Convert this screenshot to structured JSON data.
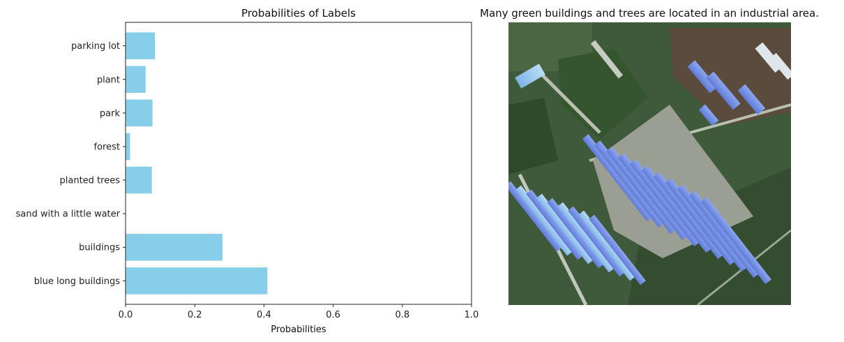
{
  "chart_data": [
    {
      "type": "bar",
      "orientation": "horizontal",
      "title": "Probabilities of Labels",
      "xlabel": "Probabilities",
      "ylabel": "",
      "xlim": [
        0,
        1.0
      ],
      "xticks": [
        "0.0",
        "0.2",
        "0.4",
        "0.6",
        "0.8",
        "1.0"
      ],
      "categories": [
        "parking lot",
        "plant",
        "park",
        "forest",
        "planted trees",
        "sand with a little water",
        "buildings",
        "blue long buildings"
      ],
      "values": [
        0.085,
        0.058,
        0.078,
        0.013,
        0.076,
        0.0,
        0.28,
        0.41
      ],
      "bar_color": "#87ceeb",
      "grid": false
    }
  ],
  "image_panel": {
    "caption": "Many green buildings and trees are located in an industrial area.",
    "content": "aerial view of an industrial area with rows of long blue-roofed buildings and trees"
  }
}
